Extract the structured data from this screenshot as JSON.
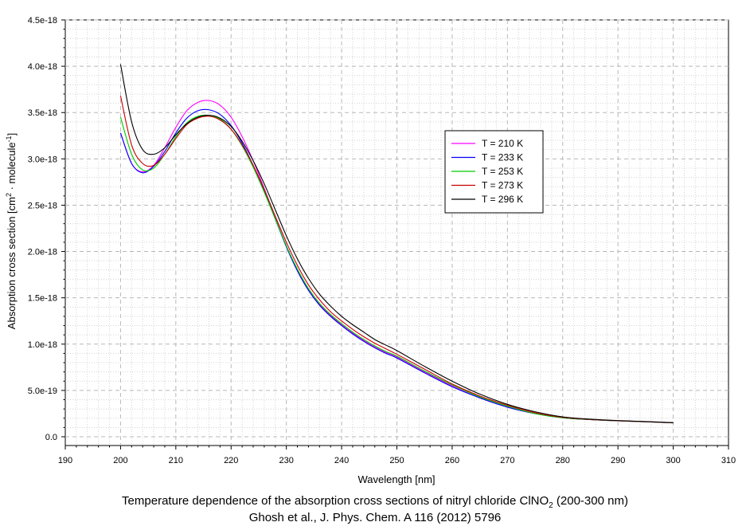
{
  "chart_data": {
    "type": "line",
    "title": "",
    "xlabel": "Wavelength [nm]",
    "ylabel": "Absorption cross section [cm² · molecule⁻¹]",
    "ylabel_parts": {
      "pre": "Absorption cross section [cm",
      "sup1": "2",
      "mid": " · molecule",
      "sup2": "-1",
      "post": "]"
    },
    "xlim": [
      190,
      310
    ],
    "ylim": [
      0,
      4.5e-18
    ],
    "xticks": [
      190,
      200,
      210,
      220,
      230,
      240,
      250,
      260,
      270,
      280,
      290,
      300,
      310
    ],
    "yticks": [
      {
        "value": 0,
        "label": "0.0"
      },
      {
        "value": 5e-19,
        "label": "5.0e-19"
      },
      {
        "value": 1e-18,
        "label": "1.0e-18"
      },
      {
        "value": 1.5e-18,
        "label": "1.5e-18"
      },
      {
        "value": 2e-18,
        "label": "2.0e-18"
      },
      {
        "value": 2.5e-18,
        "label": "2.5e-18"
      },
      {
        "value": 3e-18,
        "label": "3.0e-18"
      },
      {
        "value": 3.5e-18,
        "label": "3.5e-18"
      },
      {
        "value": 4e-18,
        "label": "4.0e-18"
      },
      {
        "value": 4.5e-18,
        "label": "4.5e-18"
      }
    ],
    "grid": true,
    "legend_position": "center-right",
    "x": [
      200,
      202,
      204,
      206,
      208,
      210,
      212,
      214,
      216,
      218,
      220,
      222,
      224,
      226,
      228,
      230,
      232,
      234,
      236,
      238,
      240,
      242,
      244,
      246,
      248,
      250,
      255,
      260,
      265,
      270,
      275,
      280,
      285,
      290,
      295,
      300
    ],
    "series": [
      {
        "name": "T = 210 K",
        "color": "#ff00ff",
        "values": [
          3.28e-18,
          2.95e-18,
          2.86e-18,
          2.93e-18,
          3.12e-18,
          3.34e-18,
          3.52e-18,
          3.61e-18,
          3.63e-18,
          3.58e-18,
          3.45e-18,
          3.24e-18,
          2.98e-18,
          2.68e-18,
          2.36e-18,
          2.06e-18,
          1.8e-18,
          1.59e-18,
          1.43e-18,
          1.31e-18,
          1.21e-18,
          1.12e-18,
          1.04e-18,
          9.7e-19,
          9.1e-19,
          8.6e-19,
          7e-19,
          5.5e-19,
          4.2e-19,
          3.2e-19,
          2.5e-19,
          2.05e-19,
          1.85e-19,
          1.72e-19,
          1.62e-19,
          1.5e-19
        ]
      },
      {
        "name": "T = 233 K",
        "color": "#0000ff",
        "values": [
          3.28e-18,
          2.95e-18,
          2.85e-18,
          2.92e-18,
          3.08e-18,
          3.28e-18,
          3.44e-18,
          3.52e-18,
          3.53e-18,
          3.48e-18,
          3.36e-18,
          3.17e-18,
          2.93e-18,
          2.65e-18,
          2.35e-18,
          2.05e-18,
          1.79e-18,
          1.58e-18,
          1.42e-18,
          1.3e-18,
          1.2e-18,
          1.11e-18,
          1.03e-18,
          9.6e-19,
          9e-19,
          8.5e-19,
          6.9e-19,
          5.4e-19,
          4.2e-19,
          3.2e-19,
          2.5e-19,
          2.05e-19,
          1.85e-19,
          1.72e-19,
          1.62e-19,
          1.5e-19
        ]
      },
      {
        "name": "T = 253 K",
        "color": "#00cc00",
        "values": [
          3.45e-18,
          3.05e-18,
          2.88e-18,
          2.9e-18,
          3.05e-18,
          3.24e-18,
          3.39e-18,
          3.46e-18,
          3.47e-18,
          3.43e-18,
          3.32e-18,
          3.14e-18,
          2.91e-18,
          2.64e-18,
          2.35e-18,
          2.06e-18,
          1.81e-18,
          1.6e-18,
          1.44e-18,
          1.32e-18,
          1.22e-18,
          1.13e-18,
          1.05e-18,
          9.8e-19,
          9.2e-19,
          8.7e-19,
          7.1e-19,
          5.6e-19,
          4.3e-19,
          3.3e-19,
          2.5e-19,
          2.05e-19,
          1.85e-19,
          1.72e-19,
          1.62e-19,
          1.5e-19
        ]
      },
      {
        "name": "T = 273 K",
        "color": "#cc0000",
        "values": [
          3.68e-18,
          3.15e-18,
          2.95e-18,
          2.93e-18,
          3.05e-18,
          3.22e-18,
          3.37e-18,
          3.44e-18,
          3.46e-18,
          3.42e-18,
          3.32e-18,
          3.15e-18,
          2.93e-18,
          2.67e-18,
          2.38e-18,
          2.1e-18,
          1.85e-18,
          1.64e-18,
          1.48e-18,
          1.35e-18,
          1.25e-18,
          1.16e-18,
          1.08e-18,
          1.01e-18,
          9.5e-19,
          8.9e-19,
          7.3e-19,
          5.7e-19,
          4.4e-19,
          3.4e-19,
          2.6e-19,
          2.1e-19,
          1.87e-19,
          1.73e-19,
          1.63e-19,
          1.51e-19
        ]
      },
      {
        "name": "T = 296 K",
        "color": "#000000",
        "values": [
          4.02e-18,
          3.4e-18,
          3.1e-18,
          3.05e-18,
          3.12e-18,
          3.26e-18,
          3.38e-18,
          3.45e-18,
          3.47e-18,
          3.44e-18,
          3.35e-18,
          3.19e-18,
          2.98e-18,
          2.73e-18,
          2.45e-18,
          2.17e-18,
          1.92e-18,
          1.71e-18,
          1.54e-18,
          1.41e-18,
          1.3e-18,
          1.21e-18,
          1.13e-18,
          1.05e-18,
          9.9e-19,
          9.3e-19,
          7.6e-19,
          6e-19,
          4.6e-19,
          3.5e-19,
          2.7e-19,
          2.15e-19,
          1.9e-19,
          1.75e-19,
          1.64e-19,
          1.52e-19
        ]
      }
    ]
  },
  "caption": {
    "line1_pre": "Temperature dependence of the absorption cross sections of nitryl chloride ClNO",
    "line1_sub": "2",
    "line1_post": " (200-300 nm)",
    "line2": "Ghosh et al., J. Phys. Chem. A 116 (2012) 5796"
  }
}
